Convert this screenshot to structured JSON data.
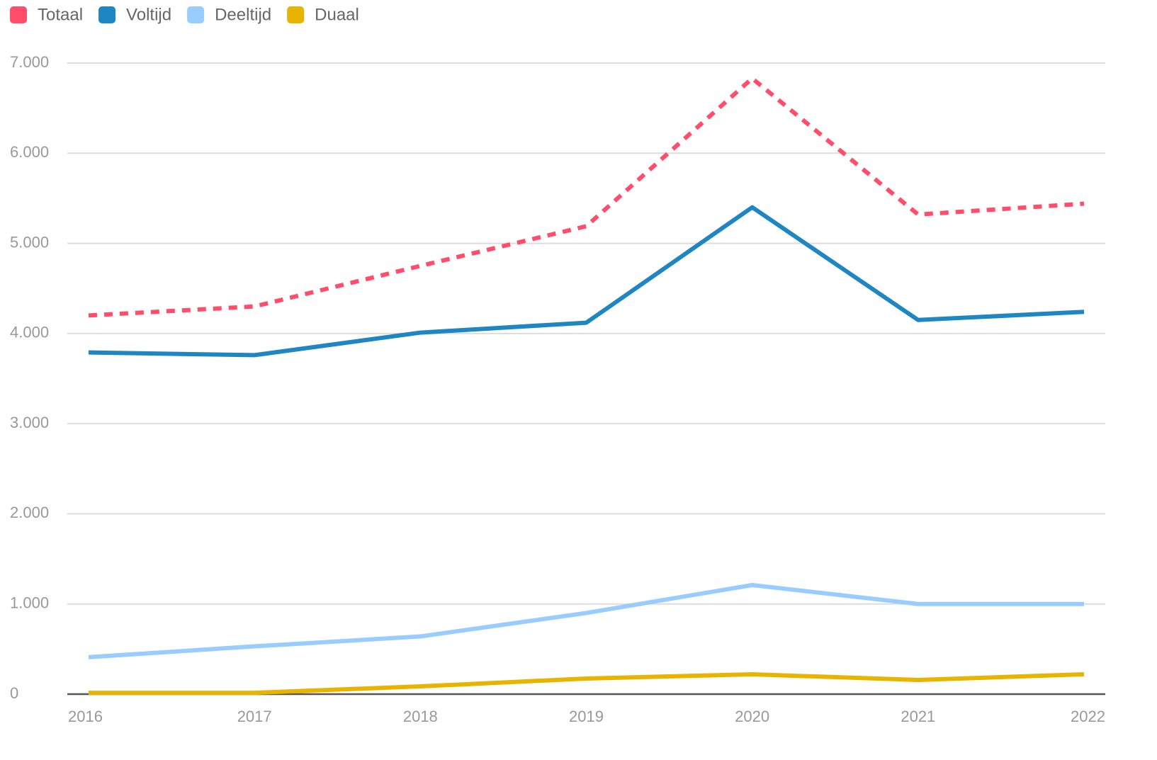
{
  "chart_data": {
    "type": "line",
    "categories": [
      "2016",
      "2017",
      "2018",
      "2019",
      "2020",
      "2021",
      "2022"
    ],
    "series": [
      {
        "name": "Totaal",
        "color": "#ff4d6a",
        "dashed": true,
        "values": [
          4200,
          4300,
          4750,
          5190,
          6830,
          5320,
          5440
        ]
      },
      {
        "name": "Voltijd",
        "color": "#1f86c4",
        "values": [
          3790,
          3760,
          4010,
          4120,
          5400,
          4150,
          4240
        ]
      },
      {
        "name": "Deeltijd",
        "color": "#99ccff",
        "values": [
          410,
          530,
          640,
          900,
          1210,
          1000,
          1000
        ]
      },
      {
        "name": "Duaal",
        "color": "#e8b400",
        "values": [
          15,
          15,
          86,
          173,
          220,
          157,
          220
        ]
      }
    ],
    "ylim": [
      0,
      7000
    ],
    "yticks": [
      0,
      {
        "value": 1000,
        "label": "1.000"
      },
      {
        "value": 2000,
        "label": "2.000"
      },
      {
        "value": 3000,
        "label": "3.000"
      },
      {
        "value": 4000,
        "label": "4.000"
      },
      {
        "value": 5000,
        "label": "5.000"
      },
      {
        "value": 6000,
        "label": "6.000"
      },
      {
        "value": 7000,
        "label": "7.000"
      }
    ],
    "grid": true,
    "legend": "top-left"
  }
}
